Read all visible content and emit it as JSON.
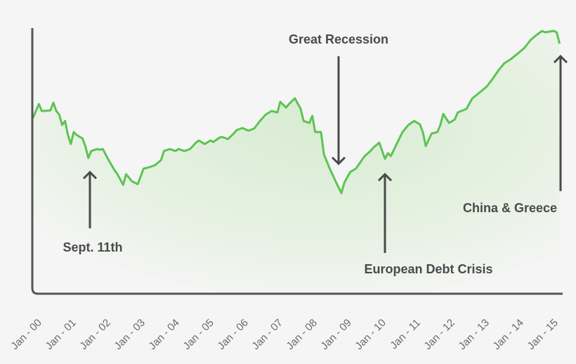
{
  "chart_data": {
    "type": "area",
    "title": "",
    "xlabel": "",
    "ylabel": "",
    "grid": false,
    "y_axis_labels_shown": false,
    "colors": {
      "line": "#5cc452",
      "fill": "#d8ecd2",
      "axis": "#555555",
      "annotation": "#4a4a4a",
      "background": "#f5f5f5"
    },
    "x_tick_labels": [
      "Jan - 00",
      "Jan - 01",
      "Jan - 02",
      "Jan - 03",
      "Jan - 04",
      "Jan - 05",
      "Jan - 06",
      "Jan - 07",
      "Jan - 08",
      "Jan - 09",
      "Jan - 10",
      "Jan - 11",
      "Jan - 12",
      "Jan - 13",
      "Jan - 14",
      "Jan - 15"
    ],
    "series": [
      {
        "points": [
          [
            "2000-01",
            1374
          ],
          [
            "2000-03",
            1500
          ],
          [
            "2000-04",
            1437
          ],
          [
            "2000-05",
            1437
          ],
          [
            "2000-07",
            1443
          ],
          [
            "2000-08",
            1512
          ],
          [
            "2000-09",
            1437
          ],
          [
            "2000-10",
            1405
          ],
          [
            "2000-11",
            1311
          ],
          [
            "2000-12",
            1348
          ],
          [
            "2001-01",
            1222
          ],
          [
            "2001-02",
            1141
          ],
          [
            "2001-03",
            1248
          ],
          [
            "2001-04",
            1222
          ],
          [
            "2001-06",
            1191
          ],
          [
            "2001-07",
            1122
          ],
          [
            "2001-08",
            1015
          ],
          [
            "2001-09",
            1078
          ],
          [
            "2001-11",
            1096
          ],
          [
            "2001-12",
            1090
          ],
          [
            "2002-01",
            1096
          ],
          [
            "2002-03",
            996
          ],
          [
            "2002-05",
            907
          ],
          [
            "2002-06",
            870
          ],
          [
            "2002-08",
            775
          ],
          [
            "2002-09",
            870
          ],
          [
            "2002-11",
            807
          ],
          [
            "2003-01",
            781
          ],
          [
            "2003-03",
            920
          ],
          [
            "2003-05",
            933
          ],
          [
            "2003-07",
            952
          ],
          [
            "2003-09",
            996
          ],
          [
            "2003-10",
            1078
          ],
          [
            "2003-12",
            1096
          ],
          [
            "2004-02",
            1078
          ],
          [
            "2004-03",
            1096
          ],
          [
            "2004-05",
            1078
          ],
          [
            "2004-07",
            1096
          ],
          [
            "2004-09",
            1153
          ],
          [
            "2004-10",
            1172
          ],
          [
            "2004-12",
            1141
          ],
          [
            "2005-02",
            1172
          ],
          [
            "2005-03",
            1159
          ],
          [
            "2005-05",
            1197
          ],
          [
            "2005-06",
            1204
          ],
          [
            "2005-08",
            1185
          ],
          [
            "2005-10",
            1235
          ],
          [
            "2005-11",
            1266
          ],
          [
            "2006-01",
            1285
          ],
          [
            "2006-03",
            1260
          ],
          [
            "2006-05",
            1279
          ],
          [
            "2006-07",
            1348
          ],
          [
            "2006-09",
            1405
          ],
          [
            "2006-11",
            1437
          ],
          [
            "2007-01",
            1424
          ],
          [
            "2007-02",
            1519
          ],
          [
            "2007-04",
            1468
          ],
          [
            "2007-05",
            1500
          ],
          [
            "2007-07",
            1550
          ],
          [
            "2007-09",
            1456
          ],
          [
            "2007-10",
            1348
          ],
          [
            "2007-12",
            1330
          ],
          [
            "2008-01",
            1393
          ],
          [
            "2008-02",
            1248
          ],
          [
            "2008-04",
            1248
          ],
          [
            "2008-05",
            1046
          ],
          [
            "2008-07",
            920
          ],
          [
            "2008-09",
            807
          ],
          [
            "2008-11",
            700
          ],
          [
            "2008-12",
            794
          ],
          [
            "2009-02",
            889
          ],
          [
            "2009-04",
            920
          ],
          [
            "2009-06",
            996
          ],
          [
            "2009-07",
            1033
          ],
          [
            "2009-09",
            1078
          ],
          [
            "2009-10",
            1109
          ],
          [
            "2009-12",
            1153
          ],
          [
            "2010-02",
            1008
          ],
          [
            "2010-03",
            1059
          ],
          [
            "2010-04",
            1033
          ],
          [
            "2010-06",
            1141
          ],
          [
            "2010-08",
            1248
          ],
          [
            "2010-10",
            1311
          ],
          [
            "2010-12",
            1348
          ],
          [
            "2011-02",
            1317
          ],
          [
            "2011-03",
            1248
          ],
          [
            "2011-04",
            1122
          ],
          [
            "2011-06",
            1235
          ],
          [
            "2011-08",
            1248
          ],
          [
            "2011-09",
            1311
          ],
          [
            "2011-10",
            1411
          ],
          [
            "2011-12",
            1330
          ],
          [
            "2012-02",
            1361
          ],
          [
            "2012-03",
            1424
          ],
          [
            "2012-06",
            1456
          ],
          [
            "2012-08",
            1550
          ],
          [
            "2012-11",
            1613
          ],
          [
            "2013-01",
            1657
          ],
          [
            "2013-03",
            1726
          ],
          [
            "2013-05",
            1802
          ],
          [
            "2013-07",
            1865
          ],
          [
            "2013-09",
            1897
          ],
          [
            "2013-12",
            1960
          ],
          [
            "2014-02",
            2004
          ],
          [
            "2014-04",
            2073
          ],
          [
            "2014-06",
            2117
          ],
          [
            "2014-08",
            2155
          ],
          [
            "2014-09",
            2142
          ],
          [
            "2014-12",
            2155
          ],
          [
            "2015-01",
            2142
          ],
          [
            "2015-02",
            2041
          ]
        ]
      }
    ],
    "annotations": [
      {
        "text": "Sept. 11th",
        "date": "2001-09",
        "arrow": "up"
      },
      {
        "text": "Great Recession",
        "date": "2008-11",
        "arrow": "down"
      },
      {
        "text": "European Debt Crisis",
        "date": "2010-03",
        "arrow": "up"
      },
      {
        "text": "China & Greece",
        "date": "2015-02",
        "arrow": "up"
      }
    ]
  }
}
